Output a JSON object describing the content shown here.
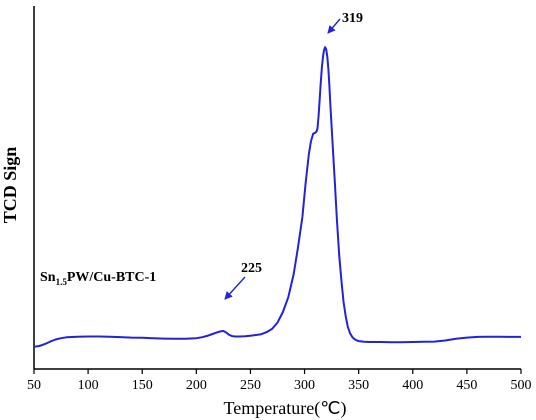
{
  "chart_data": {
    "type": "line",
    "xlabel": "Temperature(℃)",
    "ylabel": "TCD Sign",
    "xlim": [
      50,
      500
    ],
    "x_ticks": [
      50,
      100,
      150,
      200,
      250,
      300,
      350,
      400,
      450,
      500
    ],
    "y_ticks_labeled": false,
    "grid": false,
    "legend": "none",
    "line_color": "#2222dd",
    "series": [
      {
        "x": [
          50,
          55,
          60,
          65,
          70,
          75,
          80,
          90,
          100,
          110,
          120,
          130,
          140,
          150,
          160,
          170,
          180,
          190,
          200,
          205,
          210,
          215,
          220,
          223,
          225,
          228,
          230,
          233,
          236,
          240,
          245,
          250,
          255,
          260,
          265,
          270,
          275,
          280,
          285,
          290,
          294,
          298,
          301,
          304,
          306,
          308,
          310,
          311,
          312,
          313,
          314,
          315,
          316,
          317,
          318,
          319,
          320,
          321,
          322,
          323,
          324,
          326,
          328,
          330,
          332,
          334,
          336,
          338,
          340,
          342,
          344,
          346,
          348,
          350,
          355,
          360,
          370,
          380,
          390,
          400,
          410,
          420,
          430,
          440,
          450,
          460,
          470,
          480,
          490,
          500
        ],
        "y": [
          0.5,
          0.9,
          1.8,
          3.0,
          4.0,
          4.6,
          5.0,
          5.3,
          5.4,
          5.4,
          5.3,
          5.1,
          4.9,
          4.8,
          4.6,
          4.4,
          4.3,
          4.3,
          4.6,
          5.0,
          5.7,
          6.6,
          7.5,
          7.9,
          8.0,
          7.2,
          6.3,
          5.6,
          5.4,
          5.4,
          5.5,
          5.8,
          6.1,
          6.5,
          7.5,
          9.0,
          12.0,
          17.0,
          24.0,
          35.0,
          48.0,
          62.0,
          78.0,
          92.0,
          98.0,
          101.5,
          102.0,
          102.5,
          104.0,
          110.0,
          118.0,
          126.0,
          133.0,
          138.0,
          141.0,
          142.5,
          141.5,
          138.0,
          132.0,
          124.0,
          114.0,
          96.0,
          78.0,
          60.0,
          44.0,
          32.0,
          22.0,
          15.0,
          10.0,
          7.0,
          5.2,
          4.2,
          3.6,
          3.2,
          2.9,
          2.8,
          2.8,
          2.7,
          2.7,
          2.8,
          2.9,
          3.0,
          3.5,
          4.3,
          4.9,
          5.2,
          5.3,
          5.3,
          5.2,
          5.2
        ]
      }
    ],
    "annotations": [
      {
        "label": "319",
        "x": 319
      },
      {
        "label": "225",
        "x": 225
      }
    ],
    "sample_label": {
      "prefix": "Sn",
      "subscript": "1.5",
      "suffix": "PW/Cu-BTC-1"
    }
  }
}
